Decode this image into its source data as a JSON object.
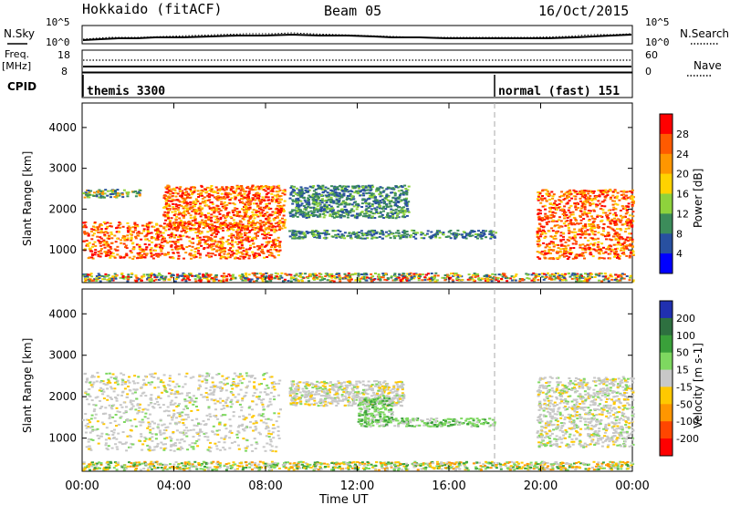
{
  "header": {
    "station": "Hokkaido (fitACF)",
    "beam": "Beam 05",
    "date": "16/Oct/2015"
  },
  "top_panel": {
    "left_label": "N.Sky",
    "right_label": "N.Search",
    "left_ticks": [
      "10^5",
      "10^0"
    ],
    "right_ticks": [
      "10^5",
      "10^0"
    ]
  },
  "freq_panel": {
    "left_label_1": "Freq.",
    "left_label_2": "[MHz]",
    "right_label": "Nave",
    "left_ticks": [
      "18",
      "8"
    ],
    "right_ticks": [
      "60",
      "0"
    ]
  },
  "cpid_panel": {
    "label": "CPID",
    "entries": [
      {
        "text": "themis 3300",
        "start_hour": 0
      },
      {
        "text": "normal (fast) 151",
        "start_hour": 18
      }
    ]
  },
  "chart_data": [
    {
      "type": "heatmap",
      "parameter": "Power",
      "colorbar_label": "Power [dB]",
      "colorbar_ticks": [
        "28",
        "24",
        "20",
        "16",
        "12",
        "8",
        "4"
      ],
      "colorbar_colors": [
        "#ff0000",
        "#ff5a00",
        "#ff9600",
        "#ffd200",
        "#8ed23c",
        "#3c8c5a",
        "#2850a0",
        "#0000ff"
      ],
      "ylabel": "Slant Range [km]",
      "ylim": [
        200,
        4600
      ],
      "yticks": [
        "4000",
        "3000",
        "2000",
        "1000"
      ],
      "xlim": [
        0,
        24
      ],
      "regions": [
        {
          "hours": [
            0,
            8.6
          ],
          "range_km": [
            800,
            1700
          ],
          "level": "high"
        },
        {
          "hours": [
            3.5,
            8.8
          ],
          "range_km": [
            1500,
            2600
          ],
          "level": "high"
        },
        {
          "hours": [
            0,
            2.5
          ],
          "range_km": [
            2300,
            2500
          ],
          "level": "medium"
        },
        {
          "hours": [
            9,
            14.2
          ],
          "range_km": [
            1800,
            2600
          ],
          "level": "low"
        },
        {
          "hours": [
            9,
            18
          ],
          "range_km": [
            1300,
            1500
          ],
          "level": "low"
        },
        {
          "hours": [
            0,
            24
          ],
          "range_km": [
            250,
            450
          ],
          "level": "mixed"
        },
        {
          "hours": [
            19.8,
            24
          ],
          "range_km": [
            800,
            2500
          ],
          "level": "high"
        }
      ]
    },
    {
      "type": "heatmap",
      "parameter": "Velocity",
      "colorbar_label": "Velocity [m s-1]",
      "colorbar_ticks": [
        "200",
        "100",
        "50",
        "15",
        "-15",
        "-50",
        "-100",
        "-200"
      ],
      "colorbar_colors": [
        "#2030b0",
        "#2e7040",
        "#3aa03a",
        "#7ed860",
        "#c8c8c8",
        "#ffc800",
        "#ff9600",
        "#ff4600",
        "#ff0000"
      ],
      "ylabel": "Slant Range [km]",
      "ylim": [
        200,
        4600
      ],
      "yticks": [
        "4000",
        "3000",
        "2000",
        "1000"
      ],
      "xlabel": "Time UT",
      "xlim": [
        0,
        24
      ],
      "xticks": [
        "00:00",
        "04:00",
        "08:00",
        "12:00",
        "16:00",
        "20:00",
        "00:00"
      ],
      "regions": [
        {
          "hours": [
            0,
            8.6
          ],
          "range_km": [
            700,
            2600
          ],
          "level": "near-zero"
        },
        {
          "hours": [
            9,
            14
          ],
          "range_km": [
            1800,
            2400
          ],
          "level": "near-zero"
        },
        {
          "hours": [
            12,
            13.5
          ],
          "range_km": [
            1400,
            2000
          ],
          "level": "positive"
        },
        {
          "hours": [
            12,
            18
          ],
          "range_km": [
            1300,
            1500
          ],
          "level": "positive"
        },
        {
          "hours": [
            0,
            24
          ],
          "range_km": [
            250,
            450
          ],
          "level": "mixed"
        },
        {
          "hours": [
            19.8,
            24
          ],
          "range_km": [
            800,
            2500
          ],
          "level": "near-zero"
        }
      ]
    }
  ]
}
